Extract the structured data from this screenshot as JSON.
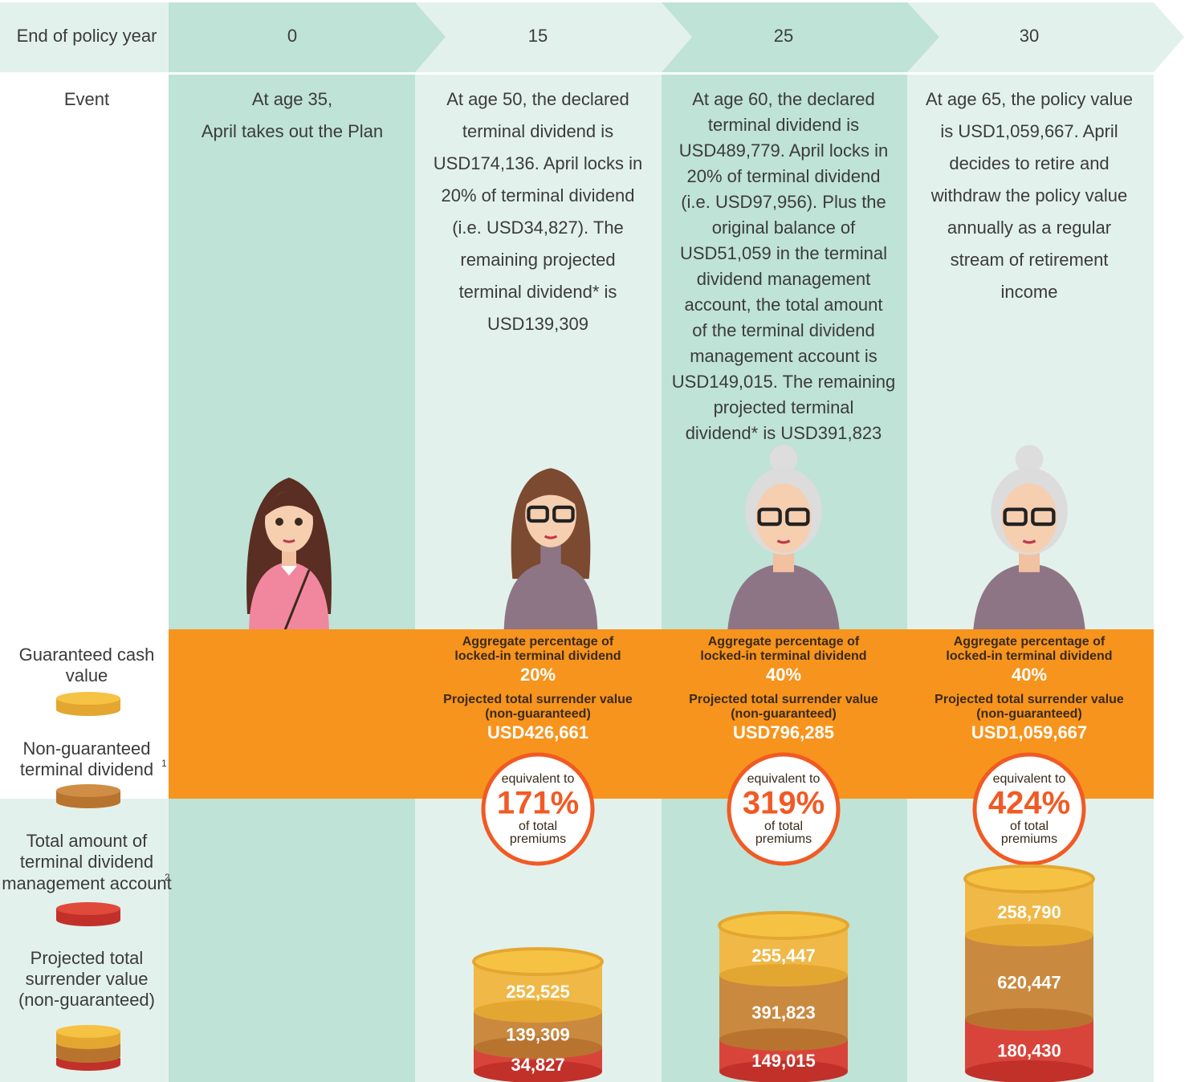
{
  "header": {
    "label": "End of policy year",
    "years": [
      "0",
      "15",
      "25",
      "30"
    ]
  },
  "event": {
    "label": "Event",
    "columns": [
      [
        "At age 35,",
        "April takes out the Plan"
      ],
      [
        "At age 50, the declared",
        "terminal dividend is",
        "USD174,136. April locks in",
        "20% of terminal dividend",
        "(i.e. USD34,827). The",
        "remaining projected",
        "terminal dividend* is",
        "USD139,309"
      ],
      [
        "At age 60, the declared",
        "terminal dividend is",
        "USD489,779. April locks in",
        "20% of terminal dividend",
        "(i.e. USD97,956). Plus the",
        "original balance of",
        "USD51,059 in the terminal",
        "dividend management",
        "account, the total amount",
        "of the terminal dividend",
        "management account is",
        "USD149,015. The remaining",
        "projected terminal",
        "dividend* is USD391,823"
      ],
      [
        "At age 65, the policy value",
        "is USD1,059,667. April",
        "decides to  retire and",
        "withdraw the policy value",
        "annually as a regular",
        "stream of retirement",
        "income"
      ]
    ]
  },
  "legend": [
    {
      "lines": [
        "Guaranteed cash",
        "value"
      ]
    },
    {
      "lines": [
        "Non-guaranteed",
        "terminal dividend"
      ],
      "note": "1"
    },
    {
      "lines": [
        "Total amount of",
        "terminal dividend",
        "management account"
      ],
      "note": "2"
    },
    {
      "lines": [
        "Projected total",
        "surrender value",
        "(non-guaranteed)"
      ]
    }
  ],
  "results": [
    {
      "locked_label": [
        "Aggregate percentage of",
        "locked-in terminal dividend"
      ],
      "locked_pct": "20%",
      "surrender_label": [
        "Projected total surrender value",
        "(non-guaranteed)"
      ],
      "surrender_value": "USD426,661",
      "circle": {
        "top": "equivalent to",
        "pct": "171%",
        "bottom": [
          "of total",
          "premiums"
        ]
      },
      "stack": [
        "252,525",
        "139,309",
        "34,827"
      ]
    },
    {
      "locked_label": [
        "Aggregate percentage of",
        "locked-in terminal dividend"
      ],
      "locked_pct": "40%",
      "surrender_label": [
        "Projected total surrender value",
        "(non-guaranteed)"
      ],
      "surrender_value": "USD796,285",
      "circle": {
        "top": "equivalent to",
        "pct": "319%",
        "bottom": [
          "of total",
          "premiums"
        ]
      },
      "stack": [
        "255,447",
        "391,823",
        "149,015"
      ]
    },
    {
      "locked_label": [
        "Aggregate percentage of",
        "locked-in terminal dividend"
      ],
      "locked_pct": "40%",
      "surrender_label": [
        "Projected total surrender value",
        "(non-guaranteed)"
      ],
      "surrender_value": "USD1,059,667",
      "circle": {
        "top": "equivalent to",
        "pct": "424%",
        "bottom": [
          "of total",
          "premiums"
        ]
      },
      "stack": [
        "258,790",
        "620,447",
        "180,430"
      ]
    }
  ]
}
